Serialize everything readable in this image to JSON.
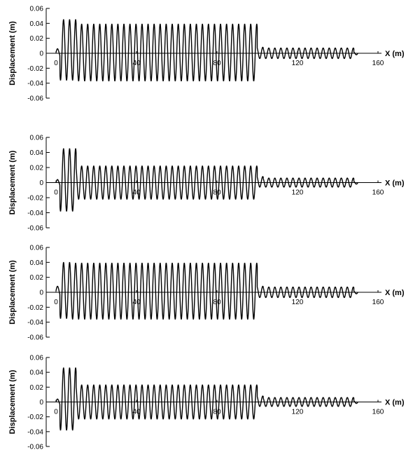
{
  "chart_data": [
    {
      "type": "line",
      "xlabel": "X (m)",
      "ylabel": "Displacement (m)",
      "xlim": [
        0,
        160
      ],
      "ylim": [
        -0.06,
        0.06
      ],
      "x_ticks": [
        0,
        40,
        80,
        120,
        160
      ],
      "y_ticks": [
        0.06,
        0.04,
        0.02,
        0,
        -0.02,
        -0.04,
        -0.06
      ],
      "y_tick_labels": [
        "0.06",
        "0.04",
        "0.02",
        "0",
        "-0.02",
        "-0.04",
        "-0.06"
      ],
      "x_tick_labels": [
        "0",
        "40",
        "80",
        "120",
        "160"
      ],
      "grid": false,
      "series": [
        {
          "color": "#000000",
          "wave_sections": [
            {
              "x": [
                0,
                2
              ],
              "peak": 0.006,
              "trough": -0.004
            },
            {
              "x": [
                2,
                10
              ],
              "peak": 0.045,
              "trough": -0.036
            },
            {
              "x": [
                10,
                100
              ],
              "peak": 0.039,
              "trough": -0.037
            },
            {
              "x": [
                100,
                103
              ],
              "peak": 0.008,
              "trough": -0.007
            },
            {
              "x": [
                103,
                148
              ],
              "peak": 0.007,
              "trough": -0.007
            },
            {
              "x": [
                148,
                150
              ],
              "peak": 0.002,
              "trough": -0.002
            }
          ],
          "wavelength": 3.0
        }
      ]
    },
    {
      "type": "line",
      "xlabel": "X (m)",
      "ylabel": "Displacement (m)",
      "xlim": [
        0,
        160
      ],
      "ylim": [
        -0.06,
        0.06
      ],
      "x_ticks": [
        0,
        40,
        80,
        120,
        160
      ],
      "y_ticks": [
        0.06,
        0.04,
        0.02,
        0,
        -0.02,
        -0.04,
        -0.06
      ],
      "y_tick_labels": [
        "0.06",
        "0.04",
        "0.02",
        "0",
        "-0.02",
        "-0.04",
        "-0.06"
      ],
      "x_tick_labels": [
        "0",
        "40",
        "80",
        "120",
        "160"
      ],
      "grid": false,
      "series": [
        {
          "color": "#000000",
          "wave_sections": [
            {
              "x": [
                0,
                2
              ],
              "peak": 0.004,
              "trough": -0.004
            },
            {
              "x": [
                2,
                10
              ],
              "peak": 0.045,
              "trough": -0.038
            },
            {
              "x": [
                10,
                100
              ],
              "peak": 0.022,
              "trough": -0.022
            },
            {
              "x": [
                100,
                103
              ],
              "peak": 0.008,
              "trough": -0.006
            },
            {
              "x": [
                103,
                148
              ],
              "peak": 0.006,
              "trough": -0.006
            },
            {
              "x": [
                148,
                150
              ],
              "peak": 0.002,
              "trough": -0.002
            }
          ],
          "wavelength": 3.0
        }
      ]
    },
    {
      "type": "line",
      "xlabel": "X (m)",
      "ylabel": "Displacement (m)",
      "xlim": [
        0,
        160
      ],
      "ylim": [
        -0.06,
        0.06
      ],
      "x_ticks": [
        0,
        40,
        80,
        120,
        160
      ],
      "y_ticks": [
        0.06,
        0.04,
        0.02,
        0,
        -0.02,
        -0.04,
        -0.06
      ],
      "y_tick_labels": [
        "0.06",
        "0.04",
        "0.02",
        "0",
        "-0.02",
        "-0.04",
        "-0.06"
      ],
      "x_tick_labels": [
        "0",
        "40",
        "80",
        "120",
        "160"
      ],
      "grid": false,
      "series": [
        {
          "color": "#000000",
          "wave_sections": [
            {
              "x": [
                0,
                2
              ],
              "peak": 0.008,
              "trough": -0.004
            },
            {
              "x": [
                2,
                8
              ],
              "peak": 0.04,
              "trough": -0.035
            },
            {
              "x": [
                8,
                100
              ],
              "peak": 0.039,
              "trough": -0.036
            },
            {
              "x": [
                100,
                103
              ],
              "peak": 0.008,
              "trough": -0.007
            },
            {
              "x": [
                103,
                148
              ],
              "peak": 0.007,
              "trough": -0.007
            },
            {
              "x": [
                148,
                150
              ],
              "peak": 0.002,
              "trough": -0.002
            }
          ],
          "wavelength": 3.0
        }
      ]
    },
    {
      "type": "line",
      "xlabel": "X (m)",
      "ylabel": "Displacement (m)",
      "xlim": [
        0,
        160
      ],
      "ylim": [
        -0.06,
        0.06
      ],
      "x_ticks": [
        0,
        40,
        80,
        120,
        160
      ],
      "y_ticks": [
        0.06,
        0.04,
        0.02,
        0,
        -0.02,
        -0.04,
        -0.06
      ],
      "y_tick_labels": [
        "0.06",
        "0.04",
        "0.02",
        "0",
        "-0.02",
        "-0.04",
        "-0.06"
      ],
      "x_tick_labels": [
        "0",
        "40",
        "80",
        "120",
        "160"
      ],
      "grid": false,
      "series": [
        {
          "color": "#000000",
          "wave_sections": [
            {
              "x": [
                0,
                2
              ],
              "peak": 0.004,
              "trough": -0.004
            },
            {
              "x": [
                2,
                10
              ],
              "peak": 0.046,
              "trough": -0.038
            },
            {
              "x": [
                10,
                100
              ],
              "peak": 0.023,
              "trough": -0.023
            },
            {
              "x": [
                100,
                103
              ],
              "peak": 0.008,
              "trough": -0.006
            },
            {
              "x": [
                103,
                148
              ],
              "peak": 0.006,
              "trough": -0.006
            },
            {
              "x": [
                148,
                150
              ],
              "peak": 0.002,
              "trough": -0.002
            }
          ],
          "wavelength": 3.0
        }
      ]
    }
  ]
}
